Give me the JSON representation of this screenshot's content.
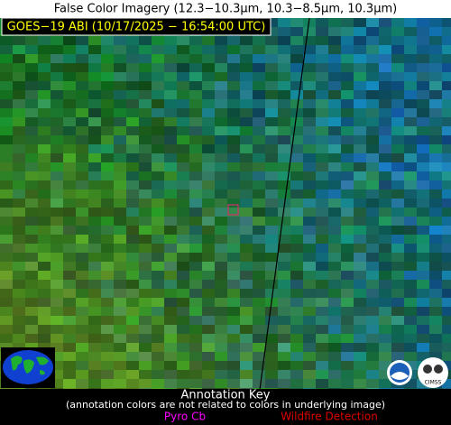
{
  "header": {
    "title": "False Color Imagery (12.3−10.3µm, 10.3−8.5µm, 10.3µm)",
    "timestamp": "GOES−19 ABI (10/17/2025 − 16:54:00 UTC)"
  },
  "footer": {
    "title": "Annotation Key",
    "note": "(annotation colors are not related to colors in underlying image)",
    "keys": [
      "Pyro Cb",
      "Wildfire Detection"
    ]
  },
  "logos": {
    "cimss": "CIMSS"
  }
}
